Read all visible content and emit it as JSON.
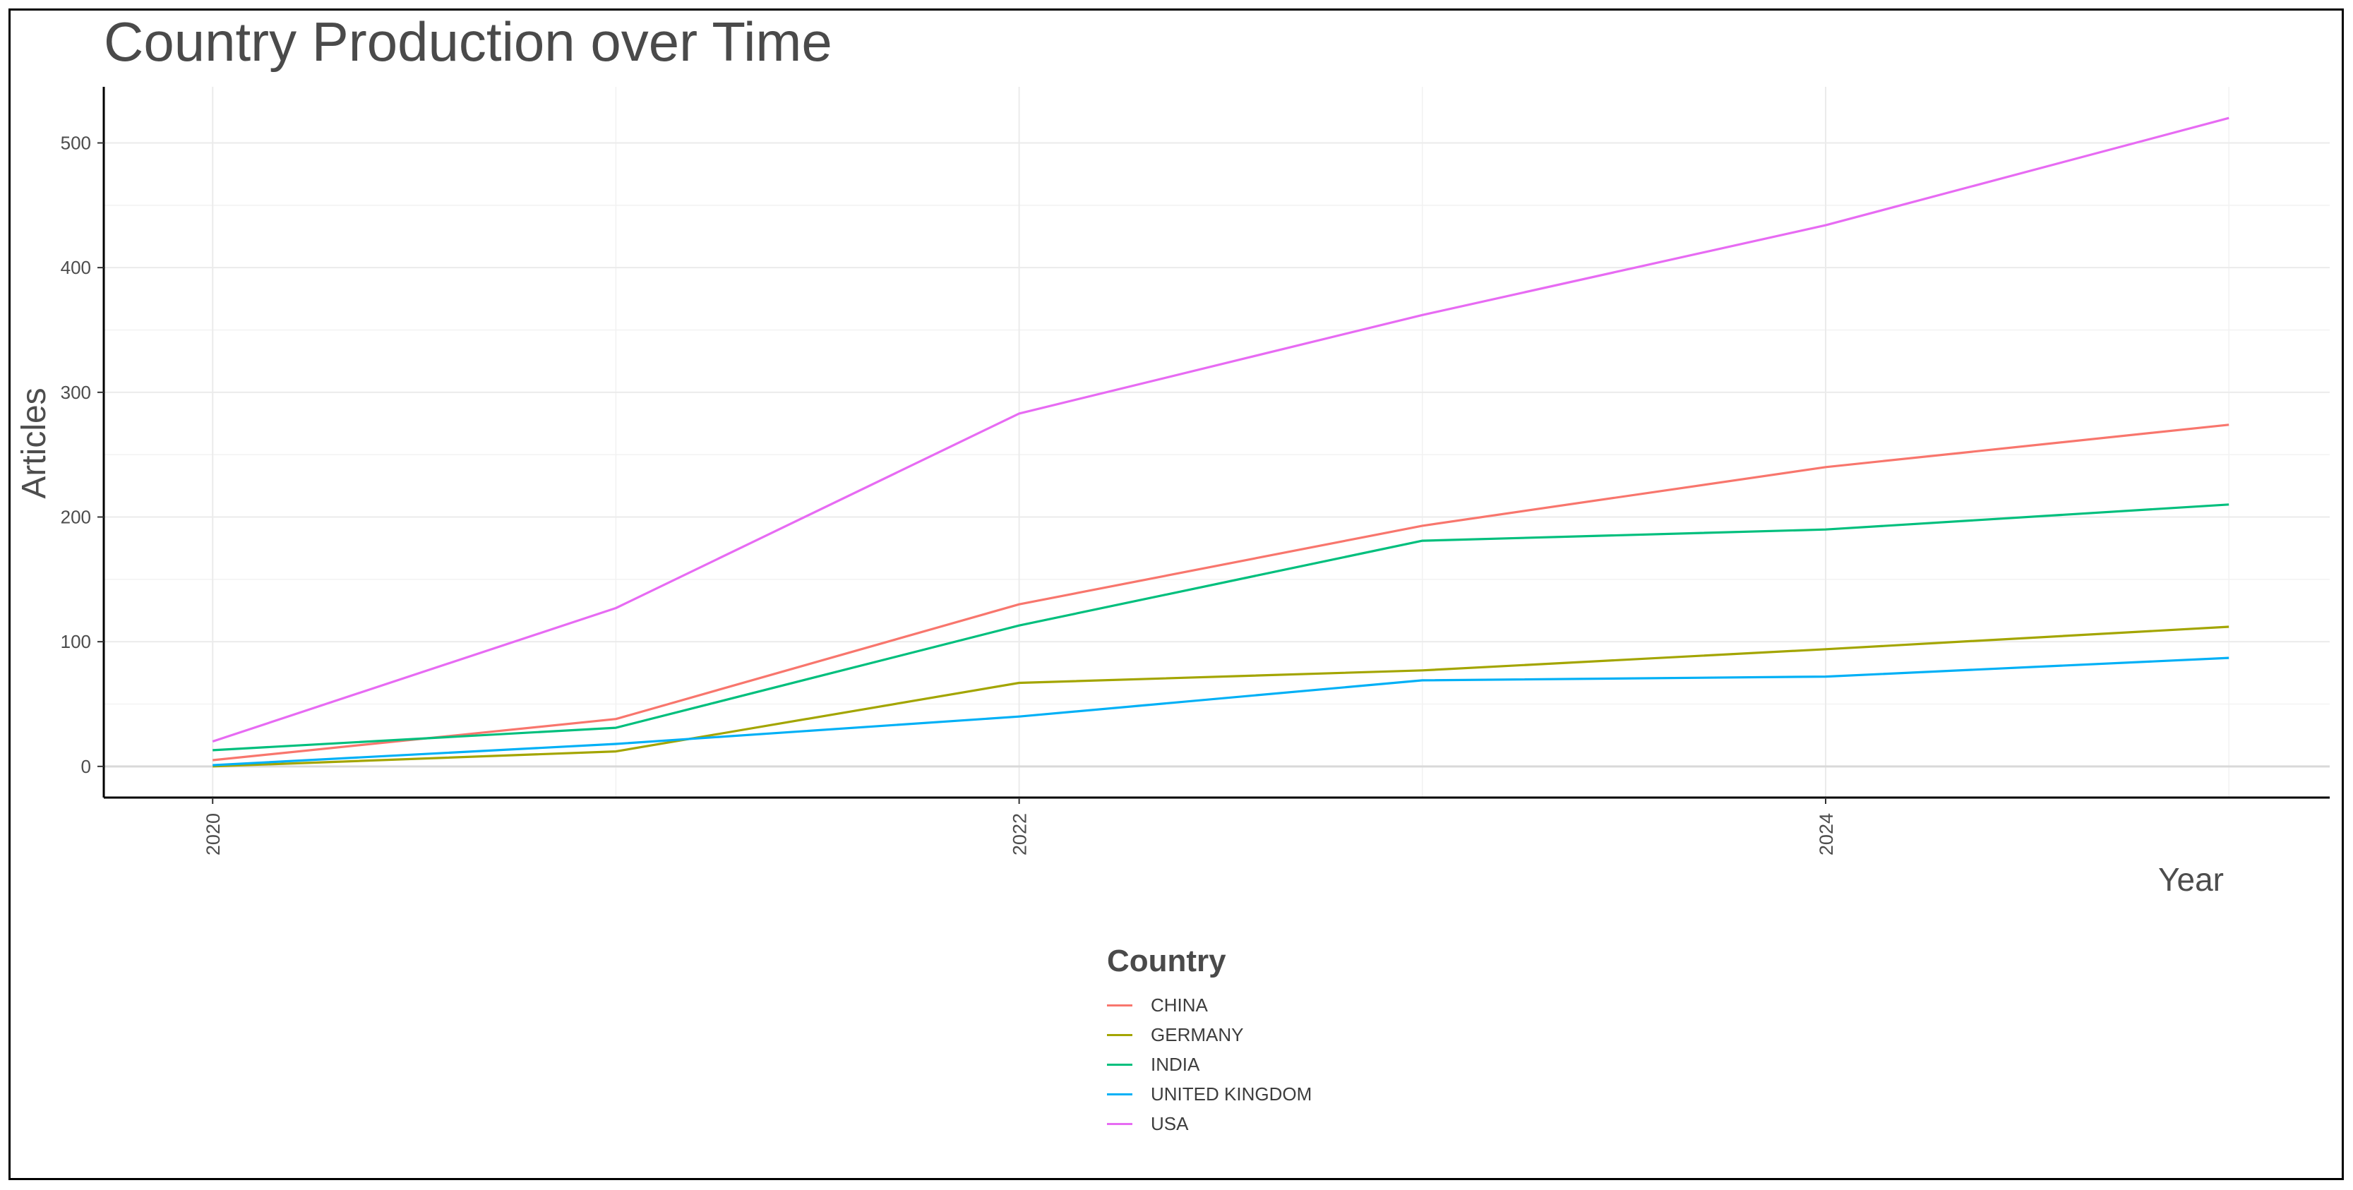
{
  "chart_data": {
    "type": "line",
    "title": "Country Production over Time",
    "xlabel": "Year",
    "ylabel": "Articles",
    "x": [
      2020,
      2021,
      2022,
      2023,
      2024,
      2025
    ],
    "xticks": [
      "2020",
      "2022",
      "2024"
    ],
    "xlim": [
      2019.73,
      2025.25
    ],
    "yticks": [
      "0",
      "100",
      "200",
      "300",
      "400",
      "500"
    ],
    "ylim": [
      -25,
      545
    ],
    "grid": true,
    "legend_title": "Country",
    "legend_position": "bottom",
    "series": [
      {
        "name": "CHINA",
        "color": "#F8766D",
        "values": [
          5,
          38,
          130,
          193,
          240,
          274
        ]
      },
      {
        "name": "GERMANY",
        "color": "#A3A500",
        "values": [
          0,
          12,
          67,
          77,
          94,
          112
        ]
      },
      {
        "name": "INDIA",
        "color": "#00BF7D",
        "values": [
          13,
          31,
          113,
          181,
          190,
          210
        ]
      },
      {
        "name": "UNITED KINGDOM",
        "color": "#00B0F6",
        "values": [
          1,
          18,
          40,
          69,
          72,
          87
        ]
      },
      {
        "name": "USA",
        "color": "#E76BF3",
        "values": [
          20,
          127,
          283,
          362,
          434,
          520
        ]
      }
    ]
  }
}
